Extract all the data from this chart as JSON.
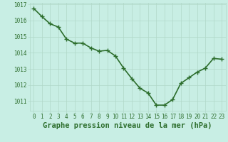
{
  "x": [
    0,
    1,
    2,
    3,
    4,
    5,
    6,
    7,
    8,
    9,
    10,
    11,
    12,
    13,
    14,
    15,
    16,
    17,
    18,
    19,
    20,
    21,
    22,
    23
  ],
  "y": [
    1016.75,
    1016.25,
    1015.8,
    1015.6,
    1014.85,
    1014.6,
    1014.6,
    1014.3,
    1014.1,
    1014.15,
    1013.8,
    1013.05,
    1012.4,
    1011.8,
    1011.5,
    1010.75,
    1010.75,
    1011.1,
    1012.1,
    1012.45,
    1012.8,
    1013.05,
    1013.65,
    1013.6
  ],
  "line_color": "#2d6e2d",
  "marker_color": "#2d6e2d",
  "bg_color": "#c8eee4",
  "grid_color": "#b0d8c8",
  "xlabel": "Graphe pression niveau de la mer (hPa)",
  "ylim": [
    1010.4,
    1017.1
  ],
  "xlim": [
    -0.5,
    23.5
  ],
  "yticks": [
    1011,
    1012,
    1013,
    1014,
    1015,
    1016,
    1017
  ],
  "xticks": [
    0,
    1,
    2,
    3,
    4,
    5,
    6,
    7,
    8,
    9,
    10,
    11,
    12,
    13,
    14,
    15,
    16,
    17,
    18,
    19,
    20,
    21,
    22,
    23
  ],
  "tick_fontsize": 5.5,
  "xlabel_fontsize": 7.5,
  "line_width": 1.2,
  "marker_size": 4.5
}
